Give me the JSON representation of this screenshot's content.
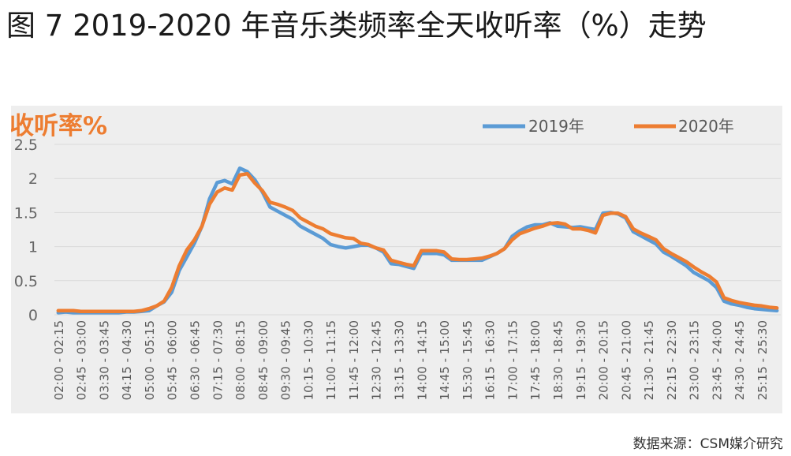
{
  "figure_title": "图 7  2019-2020 年音乐类频率全天收听率（%）走势",
  "source": "数据来源：CSM媒介研究",
  "colors": {
    "series_2019": "#5b9bd5",
    "series_2020": "#ed7d31",
    "unit_label": "#ed7d31",
    "grid": "#d9d9d9",
    "tick": "#666666"
  },
  "chart_data": {
    "type": "line",
    "title": "",
    "ylabel": "收听率%",
    "xlabel": "",
    "ylim": [
      0,
      2.5
    ],
    "yticks": [
      0,
      0.5,
      1,
      1.5,
      2,
      2.5
    ],
    "ytick_labels": [
      "0",
      "0.5",
      "1",
      "1.5",
      "2",
      "2.5"
    ],
    "grid": true,
    "legend": "top-right",
    "x": [
      "02:00 - 02:15",
      "02:15 - 02:30",
      "02:30 - 02:45",
      "02:45 - 03:00",
      "03:00 - 03:15",
      "03:15 - 03:30",
      "03:30 - 03:45",
      "03:45 - 04:00",
      "04:00 - 04:15",
      "04:15 - 04:30",
      "04:30 - 04:45",
      "04:45 - 05:00",
      "05:00 - 05:15",
      "05:15 - 05:30",
      "05:30 - 05:45",
      "05:45 - 06:00",
      "06:00 - 06:15",
      "06:15 - 06:30",
      "06:30 - 06:45",
      "06:45 - 07:00",
      "07:00 - 07:15",
      "07:15 - 07:30",
      "07:30 - 07:45",
      "07:45 - 08:00",
      "08:00 - 08:15",
      "08:15 - 08:30",
      "08:30 - 08:45",
      "08:45 - 09:00",
      "09:00 - 09:15",
      "09:15 - 09:30",
      "09:30 - 09:45",
      "09:45 - 10:00",
      "10:00 - 10:15",
      "10:15 - 10:30",
      "10:30 - 10:45",
      "10:45 - 11:00",
      "11:00 - 11:15",
      "11:15 - 11:30",
      "11:30 - 11:45",
      "11:45 - 12:00",
      "12:00 - 12:15",
      "12:15 - 12:30",
      "12:30 - 12:45",
      "12:45 - 13:00",
      "13:00 - 13:15",
      "13:15 - 13:30",
      "13:30 - 13:45",
      "13:45 - 14:00",
      "14:00 - 14:15",
      "14:15 - 14:30",
      "14:30 - 14:45",
      "14:45 - 15:00",
      "15:00 - 15:15",
      "15:15 - 15:30",
      "15:30 - 15:45",
      "15:45 - 16:00",
      "16:00 - 16:15",
      "16:15 - 16:30",
      "16:30 - 16:45",
      "16:45 - 17:00",
      "17:00 - 17:15",
      "17:15 - 17:30",
      "17:30 - 17:45",
      "17:45 - 18:00",
      "18:00 - 18:15",
      "18:15 - 18:30",
      "18:30 - 18:45",
      "18:45 - 19:00",
      "19:00 - 19:15",
      "19:15 - 19:30",
      "19:30 - 19:45",
      "19:45 - 20:00",
      "20:00 - 20:15",
      "20:15 - 20:30",
      "20:30 - 20:45",
      "20:45 - 21:00",
      "21:00 - 21:15",
      "21:15 - 21:30",
      "21:30 - 21:45",
      "21:45 - 22:00",
      "22:00 - 22:15",
      "22:15 - 22:30",
      "22:30 - 22:45",
      "22:45 - 23:00",
      "23:00 - 23:15",
      "23:15 - 23:30",
      "23:30 - 23:45",
      "23:45 - 24:00",
      "24:00 - 24:15",
      "24:15 - 24:30",
      "24:30 - 24:45",
      "24:45 - 25:00",
      "25:00 - 25:15",
      "25:15 - 25:30",
      "25:30 - 25:45",
      "25:45 - 26:00"
    ],
    "tick_every": 3,
    "series": [
      {
        "name": "2019年",
        "color": "#5b9bd5",
        "values": [
          0.03,
          0.04,
          0.03,
          0.03,
          0.03,
          0.03,
          0.03,
          0.03,
          0.03,
          0.04,
          0.04,
          0.05,
          0.06,
          0.13,
          0.19,
          0.33,
          0.65,
          0.85,
          1.05,
          1.3,
          1.7,
          1.94,
          1.97,
          1.92,
          2.15,
          2.1,
          1.98,
          1.8,
          1.58,
          1.52,
          1.46,
          1.4,
          1.3,
          1.24,
          1.18,
          1.12,
          1.03,
          1.0,
          0.98,
          1.0,
          1.02,
          1.02,
          0.98,
          0.92,
          0.75,
          0.74,
          0.71,
          0.68,
          0.9,
          0.9,
          0.9,
          0.88,
          0.8,
          0.8,
          0.8,
          0.8,
          0.8,
          0.85,
          0.9,
          0.97,
          1.15,
          1.23,
          1.29,
          1.32,
          1.32,
          1.35,
          1.3,
          1.29,
          1.28,
          1.29,
          1.27,
          1.25,
          1.49,
          1.5,
          1.48,
          1.42,
          1.22,
          1.16,
          1.1,
          1.04,
          0.92,
          0.86,
          0.79,
          0.72,
          0.62,
          0.56,
          0.5,
          0.4,
          0.2,
          0.16,
          0.14,
          0.11,
          0.09,
          0.08,
          0.07,
          0.06
        ]
      },
      {
        "name": "2020年",
        "color": "#ed7d31",
        "values": [
          0.06,
          0.06,
          0.06,
          0.05,
          0.05,
          0.05,
          0.05,
          0.05,
          0.05,
          0.05,
          0.05,
          0.06,
          0.09,
          0.13,
          0.2,
          0.4,
          0.72,
          0.95,
          1.1,
          1.3,
          1.62,
          1.8,
          1.86,
          1.83,
          2.05,
          2.07,
          1.93,
          1.82,
          1.65,
          1.62,
          1.58,
          1.53,
          1.42,
          1.36,
          1.3,
          1.26,
          1.19,
          1.16,
          1.13,
          1.12,
          1.05,
          1.03,
          0.98,
          0.95,
          0.8,
          0.77,
          0.74,
          0.72,
          0.94,
          0.94,
          0.94,
          0.92,
          0.82,
          0.81,
          0.81,
          0.82,
          0.83,
          0.86,
          0.9,
          0.97,
          1.1,
          1.19,
          1.23,
          1.27,
          1.3,
          1.34,
          1.35,
          1.33,
          1.26,
          1.26,
          1.24,
          1.2,
          1.46,
          1.49,
          1.49,
          1.44,
          1.26,
          1.2,
          1.15,
          1.1,
          0.97,
          0.9,
          0.84,
          0.78,
          0.7,
          0.63,
          0.57,
          0.48,
          0.25,
          0.21,
          0.18,
          0.16,
          0.14,
          0.13,
          0.11,
          0.1
        ]
      }
    ]
  }
}
